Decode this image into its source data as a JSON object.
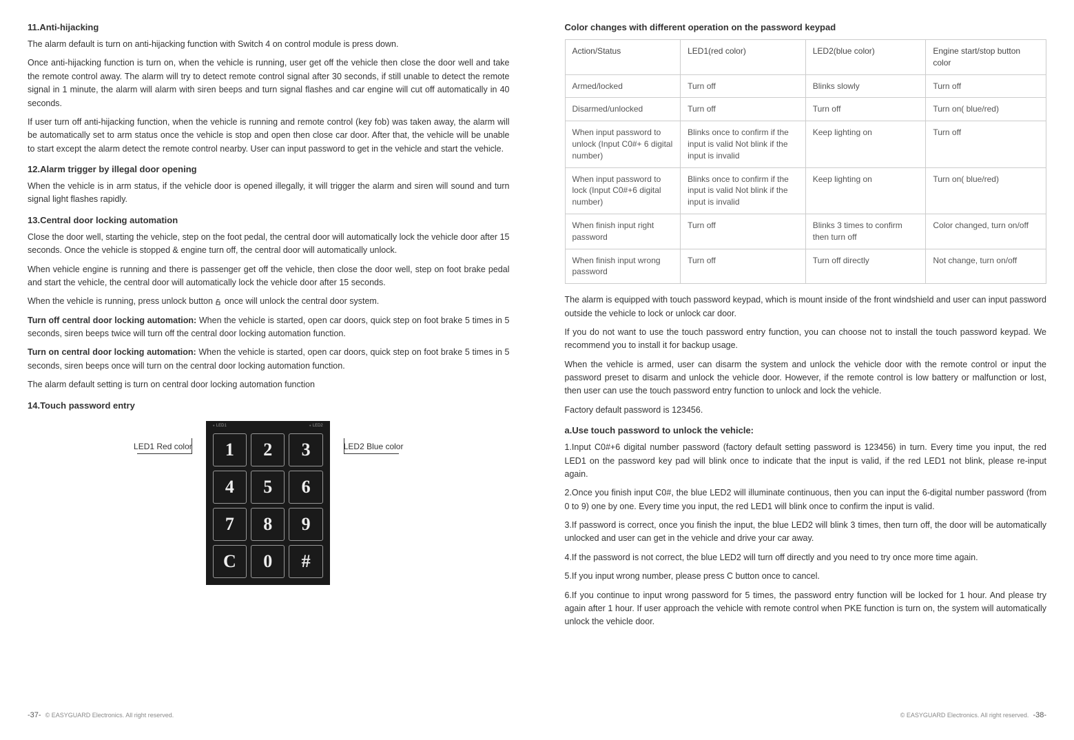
{
  "left": {
    "h1": "11.Anti-hijacking",
    "p1": "The alarm default is turn on anti-hijacking function with Switch 4 on control module is press down.",
    "p2": "Once anti-hijacking function is turn on, when the vehicle is running, user get off the vehicle then close the door well and take the remote control away. The alarm will try to detect remote control signal after 30 seconds, if still unable to detect the remote signal in 1 minute, the alarm will alarm with siren beeps and turn signal flashes and car engine will cut off automatically in 40 seconds.",
    "p3": "If user turn off anti-hijacking function, when the vehicle is running and remote control (key fob) was taken away, the alarm will be automatically set to arm status once the vehicle is stop and open then close car door. After that, the vehicle will be unable to start except the alarm detect the remote control nearby. User can input password to get in the vehicle and start the vehicle.",
    "h2": "12.Alarm trigger by illegal door opening",
    "p4": "When the vehicle is in arm status, if the vehicle door is opened illegally, it will trigger the alarm and siren will sound and turn signal light flashes rapidly.",
    "h3": "13.Central door locking automation",
    "p5": "Close the door well, starting the vehicle, step on the foot pedal, the central door will automatically lock the vehicle door after 15 seconds. Once the vehicle is stopped & engine turn off, the central door will automatically unlock.",
    "p6": "When vehicle engine is running and there is passenger get off the vehicle, then close the door well, step on foot brake pedal and start the vehicle, the central door will automatically lock the vehicle door after 15 seconds.",
    "p7a": "When the vehicle is running, press unlock button ",
    "p7b": " once will unlock the central door system.",
    "p8b": "Turn off central door locking automation: ",
    "p8": "When the vehicle is started, open car doors, quick step on foot brake 5 times in 5 seconds, siren beeps twice will turn off the central door locking automation function.",
    "p9b": "Turn on central door locking automation: ",
    "p9": "When the vehicle is started, open car doors, quick step on foot brake 5 times in 5 seconds, siren beeps once will turn on the central door locking automation function.",
    "p10": "The alarm default setting is turn on central door locking automation function",
    "h4": "14.Touch password entry",
    "keypad": {
      "left_label": "LED1   Red color",
      "right_label": "LED2   Blue color",
      "led1": "LED1",
      "led2": "LED2",
      "keys": [
        "1",
        "2",
        "3",
        "4",
        "5",
        "6",
        "7",
        "8",
        "9",
        "C",
        "0",
        "#"
      ]
    },
    "footer_page": "-37-",
    "footer_text": "©  EASYGUARD  Electronics.   All  right reserved."
  },
  "right": {
    "h1": "Color changes with different operation on the password keypad",
    "table": {
      "rows": [
        [
          "Action/Status",
          "LED1(red color)",
          "LED2(blue color)",
          "Engine start/stop button color"
        ],
        [
          "Armed/locked",
          "Turn off",
          "Blinks slowly",
          "Turn off"
        ],
        [
          "Disarmed/unlocked",
          "Turn off",
          "Turn off",
          "Turn on( blue/red)"
        ],
        [
          "When input password to unlock (Input C0#+ 6 digital number)",
          "Blinks once to confirm if the input is valid Not blink if the input is invalid",
          "Keep lighting on",
          "Turn off"
        ],
        [
          "When input password to lock (Input C0#+6 digital number)",
          "Blinks once to confirm if the input is valid Not blink if the input is invalid",
          "Keep lighting on",
          "Turn on( blue/red)"
        ],
        [
          "When finish input right password",
          "Turn off",
          "Blinks 3 times to confirm then turn off",
          "Color changed, turn on/off"
        ],
        [
          "When finish input wrong password",
          "Turn off",
          "Turn off directly",
          "Not change, turn on/off"
        ]
      ]
    },
    "p1": "The alarm is equipped with touch password keypad, which is mount inside of the front windshield and user can input password outside the vehicle to lock or unlock car door.",
    "p2": "If you do not want to use the touch password entry function, you can choose not to install the touch password keypad. We recommend you to install it for backup usage.",
    "p3": "When the vehicle is armed, user can disarm the system and unlock the vehicle door with the remote control or input the password preset to disarm and unlock the vehicle door. However, if the remote control is low battery or malfunction or lost, then user can use the touch password entry function to unlock and lock the vehicle.",
    "p4": "Factory default password is 123456.",
    "h2": "a.Use touch password to unlock the vehicle:",
    "p5": "1.Input C0#+6 digital number password (factory default setting password is 123456) in turn. Every time you input, the red LED1 on the password key pad will blink once to indicate that the input is valid, if the red LED1 not blink, please re-input again.",
    "p6": "2.Once you finish input C0#, the blue LED2 will illuminate continuous, then you can input the 6-digital number password (from 0 to 9) one by one. Every time you input, the red LED1 will blink once to confirm the input is valid.",
    "p7": "3.If password is correct, once you finish the input, the blue LED2 will blink 3 times, then turn off, the door will be automatically unlocked and user can get in the vehicle and drive your car away.",
    "p8": "4.If the password is not correct, the blue LED2 will turn off directly and you need to try once more time again.",
    "p9": "5.If you input wrong number, please press C button once to cancel.",
    "p10": "6.If you continue to input wrong password for 5 times, the password entry function will be locked for 1 hour. And please try again after 1 hour. If user approach the vehicle with remote control when PKE function is turn on, the system will automatically unlock the vehicle door.",
    "footer_text": "©  EASYGUARD  Electronics.   All  right reserved.",
    "footer_page": "-38-"
  }
}
